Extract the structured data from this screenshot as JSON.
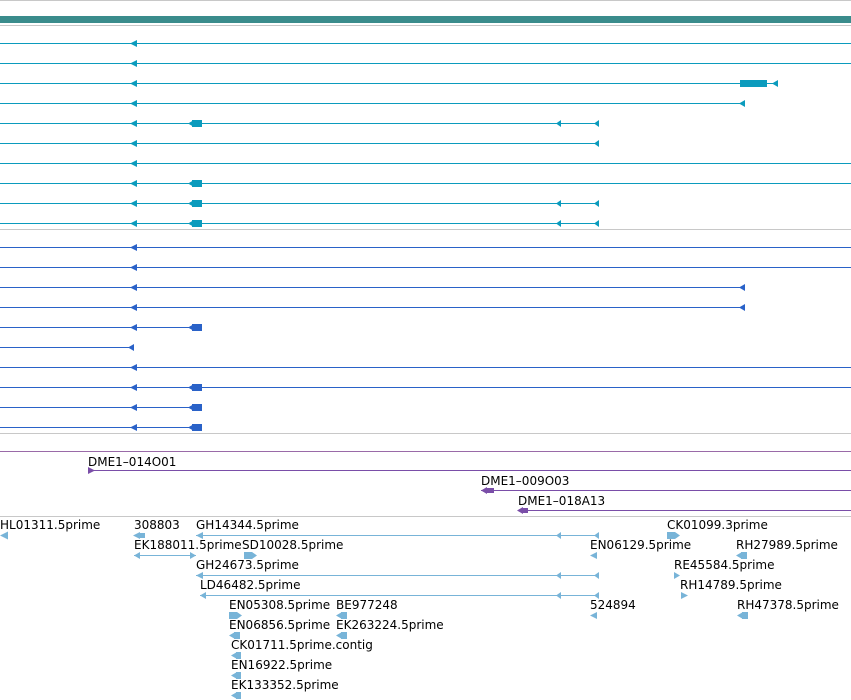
{
  "colors": {
    "gene_bar": "#3a8c8c",
    "transcript": "#0b9bbd",
    "cds_transcript": "#2a62c8",
    "oligo": "#7a4ea8",
    "est": "#78b4d8",
    "divider": "#c8c8c8"
  },
  "tracks": {
    "gene": {
      "name": "gene-bar"
    },
    "transcripts": [
      {
        "icon": "left-arrow-icon"
      },
      {
        "icon": "left-arrow-icon"
      },
      {
        "icon": "left-arrow-icon"
      },
      {
        "icon": "left-arrow-icon"
      },
      {
        "icon": "left-arrow-icon"
      },
      {
        "icon": "left-arrow-icon"
      },
      {
        "icon": "left-arrow-icon"
      },
      {
        "icon": "left-arrow-icon"
      },
      {
        "icon": "left-arrow-icon"
      },
      {
        "icon": "left-arrow-icon"
      }
    ],
    "oligos": [
      {
        "label": "DME1–014O01"
      },
      {
        "label": "DME1–009O03"
      },
      {
        "label": "DME1–018A13"
      }
    ],
    "ests": [
      {
        "label": "HL01311.5prime"
      },
      {
        "label": "308803"
      },
      {
        "label": "GH14344.5prime"
      },
      {
        "label": "CK01099.3prime"
      },
      {
        "label": "EK188011.5prime"
      },
      {
        "label": "SD10028.5prime"
      },
      {
        "label": "EN06129.5prime"
      },
      {
        "label": "RH27989.5prime"
      },
      {
        "label": "GH24673.5prime"
      },
      {
        "label": "RE45584.5prime"
      },
      {
        "label": "LD46482.5prime"
      },
      {
        "label": "RH14789.5prime"
      },
      {
        "label": "EN05308.5prime"
      },
      {
        "label": "BE977248"
      },
      {
        "label": "524894"
      },
      {
        "label": "RH47378.5prime"
      },
      {
        "label": "EN06856.5prime"
      },
      {
        "label": "EK263224.5prime"
      },
      {
        "label": "CK01711.5prime.contig"
      },
      {
        "label": "EN16922.5prime"
      },
      {
        "label": "EK133352.5prime"
      }
    ]
  }
}
